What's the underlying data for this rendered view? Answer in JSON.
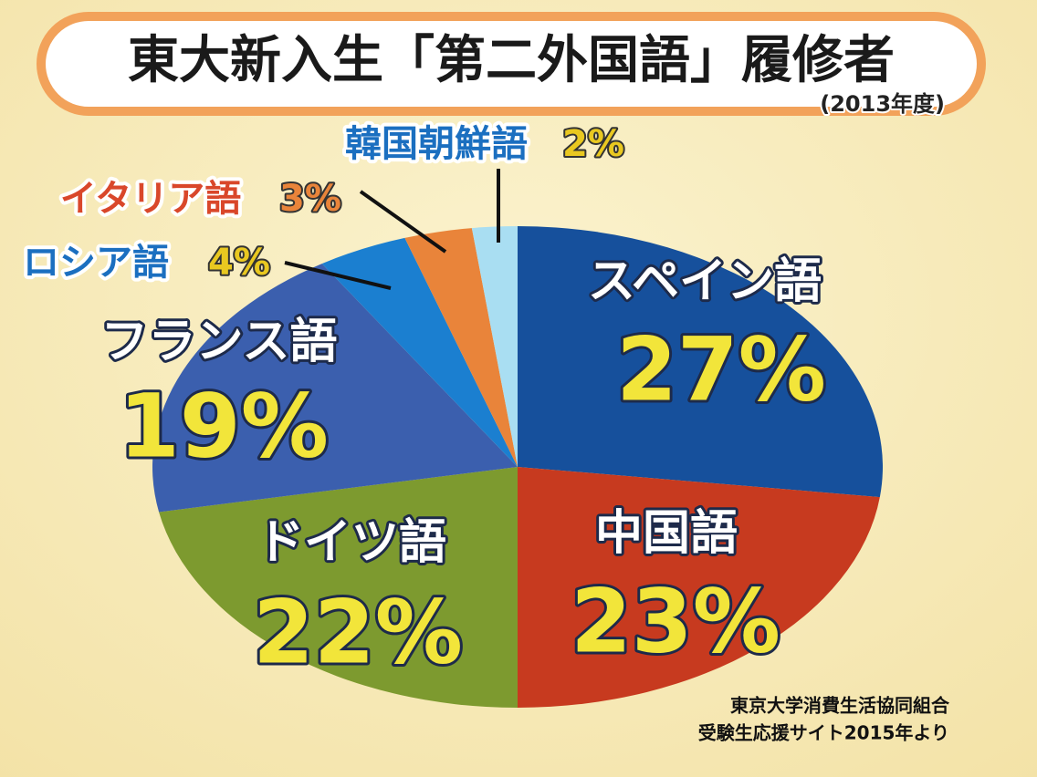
{
  "chart_data": {
    "type": "pie",
    "title": "東大新入生「第二外国語」履修者",
    "subtitle": "(2013年度)",
    "categories": [
      "スペイン語",
      "中国語",
      "ドイツ語",
      "フランス語",
      "ロシア語",
      "イタリア語",
      "韓国朝鮮語"
    ],
    "values": [
      27,
      23,
      22,
      19,
      4,
      3,
      2
    ],
    "value_labels": [
      "27%",
      "23%",
      "22%",
      "19%",
      "4%",
      "3%",
      "2%"
    ],
    "colors": [
      "#16509c",
      "#c73a1f",
      "#7d9a2f",
      "#3b5fae",
      "#1b7fd0",
      "#e9843a",
      "#a9def2"
    ],
    "source": [
      "東京大学消費生活協同組合",
      "受験生応援サイト2015年より"
    ]
  }
}
